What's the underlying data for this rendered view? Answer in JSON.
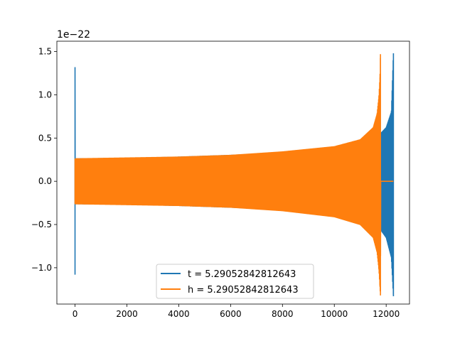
{
  "chart_data": {
    "type": "line",
    "title": "",
    "xlabel": "",
    "ylabel": "",
    "y_offset_text": "1e−22",
    "xlim": [
      -700,
      12900
    ],
    "ylim": [
      -1.42,
      1.62
    ],
    "x_ticks": [
      0,
      2000,
      4000,
      6000,
      8000,
      10000,
      12000
    ],
    "x_tick_labels": [
      "0",
      "2000",
      "4000",
      "6000",
      "8000",
      "10000",
      "12000"
    ],
    "y_ticks": [
      -1.0,
      -0.5,
      0.0,
      0.5,
      1.0,
      1.5
    ],
    "y_tick_labels": [
      "−1.0",
      "−0.5",
      "0.0",
      "0.5",
      "1.0",
      "1.5"
    ],
    "grid": false,
    "legend_position": "lower-center",
    "series": [
      {
        "name": "t = 5.29052842812643",
        "color": "#1f77b4",
        "envelope": {
          "x": [
            0,
            1,
            50,
            2000,
            4000,
            6000,
            8000,
            10000,
            11000,
            11500,
            11790,
            11810,
            12000,
            12200,
            12280
          ],
          "upper": [
            1.32,
            0.26,
            0.26,
            0.265,
            0.28,
            0.3,
            0.33,
            0.38,
            0.43,
            0.48,
            0.52,
            0.56,
            0.62,
            0.8,
            1.48
          ],
          "lower": [
            -1.08,
            -0.26,
            -0.26,
            -0.265,
            -0.28,
            -0.3,
            -0.33,
            -0.38,
            -0.43,
            -0.48,
            -0.52,
            -0.57,
            -0.65,
            -0.88,
            -1.33
          ]
        }
      },
      {
        "name": "h = 5.29052842812643",
        "color": "#ff7f0e",
        "envelope": {
          "x": [
            0,
            2000,
            4000,
            6000,
            8000,
            10000,
            11000,
            11500,
            11650,
            11720,
            11760,
            11780,
            11790,
            12280
          ],
          "upper": [
            0.26,
            0.27,
            0.28,
            0.3,
            0.34,
            0.4,
            0.48,
            0.62,
            0.78,
            0.98,
            1.2,
            1.47,
            0.0,
            0.0
          ],
          "lower": [
            -0.26,
            -0.27,
            -0.28,
            -0.3,
            -0.34,
            -0.41,
            -0.5,
            -0.65,
            -0.82,
            -1.02,
            -1.22,
            -1.32,
            0.0,
            0.0
          ]
        }
      }
    ]
  }
}
